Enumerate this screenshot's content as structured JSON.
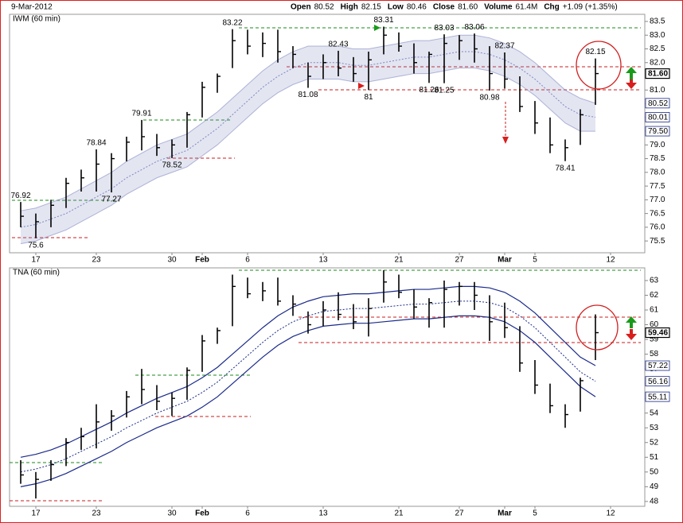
{
  "date": "9-Mar-2012",
  "quote": [
    {
      "label": "Open",
      "value": "80.52"
    },
    {
      "label": "High",
      "value": "82.15"
    },
    {
      "label": "Low",
      "value": "80.46"
    },
    {
      "label": "Close",
      "value": "81.60"
    },
    {
      "label": "Volume",
      "value": "61.4M"
    },
    {
      "label": "Chg",
      "value": "+1.09 (+1.35%)"
    }
  ],
  "chart_data": [
    {
      "type": "hlc",
      "title": "IWM (60 min)",
      "categories": [
        null,
        "17",
        null,
        null,
        null,
        "23",
        null,
        null,
        null,
        null,
        "30",
        null,
        "Feb",
        null,
        null,
        "6",
        null,
        null,
        null,
        null,
        "13",
        null,
        null,
        null,
        null,
        "21",
        null,
        null,
        null,
        "27",
        null,
        null,
        "Mar",
        null,
        "5",
        null,
        null,
        null,
        null,
        "12"
      ],
      "high": [
        76.92,
        76.5,
        77.0,
        77.8,
        78.1,
        78.84,
        78.7,
        79.3,
        79.91,
        79.4,
        79.2,
        80.2,
        81.3,
        81.6,
        83.22,
        83.2,
        83.1,
        83.2,
        82.6,
        82.0,
        82.3,
        82.43,
        82.2,
        82.4,
        83.31,
        83.1,
        82.7,
        82.4,
        83.03,
        83.0,
        83.06,
        82.6,
        82.37,
        81.5,
        80.6,
        80.0,
        79.2,
        80.3,
        82.15,
        null
      ],
      "low": [
        76.0,
        75.6,
        76.0,
        76.7,
        77.3,
        77.3,
        77.27,
        78.4,
        78.8,
        78.6,
        78.52,
        78.9,
        80.0,
        80.9,
        81.8,
        82.3,
        82.2,
        82.0,
        81.8,
        81.08,
        81.4,
        81.5,
        81.3,
        81.0,
        82.3,
        82.4,
        81.6,
        81.26,
        81.25,
        82.1,
        82.0,
        80.98,
        81.05,
        80.2,
        79.4,
        78.7,
        78.41,
        79.0,
        80.46,
        null
      ],
      "close": [
        76.4,
        76.2,
        76.8,
        77.6,
        77.8,
        78.3,
        78.5,
        79.1,
        79.3,
        78.9,
        79.0,
        80.1,
        81.1,
        81.5,
        82.8,
        82.6,
        82.7,
        82.4,
        82.3,
        81.5,
        82.0,
        81.8,
        81.6,
        82.1,
        83.0,
        82.6,
        82.0,
        82.3,
        82.7,
        82.8,
        82.5,
        81.6,
        81.4,
        80.4,
        79.8,
        79.0,
        78.9,
        80.1,
        81.6,
        null
      ],
      "band": {
        "upper": [
          76.6,
          76.7,
          76.9,
          77.1,
          77.4,
          77.7,
          78.0,
          78.4,
          78.7,
          79.0,
          79.2,
          79.4,
          79.8,
          80.2,
          80.7,
          81.2,
          81.7,
          82.1,
          82.4,
          82.6,
          82.6,
          82.6,
          82.5,
          82.5,
          82.6,
          82.7,
          82.8,
          82.8,
          82.9,
          83.0,
          83.0,
          82.9,
          82.7,
          82.4,
          82.0,
          81.5,
          81.0,
          80.7,
          80.52,
          null
        ],
        "middle": [
          76.0,
          76.1,
          76.3,
          76.5,
          76.8,
          77.1,
          77.4,
          77.8,
          78.1,
          78.4,
          78.6,
          78.8,
          79.2,
          79.6,
          80.1,
          80.6,
          81.1,
          81.5,
          81.8,
          82.0,
          82.0,
          82.0,
          81.9,
          81.9,
          82.0,
          82.1,
          82.2,
          82.2,
          82.3,
          82.4,
          82.4,
          82.3,
          82.1,
          81.8,
          81.4,
          80.9,
          80.4,
          80.1,
          80.01,
          null
        ],
        "lower": [
          75.4,
          75.5,
          75.7,
          75.9,
          76.2,
          76.5,
          76.8,
          77.2,
          77.5,
          77.8,
          78.0,
          78.2,
          78.6,
          79.0,
          79.5,
          80.0,
          80.5,
          80.9,
          81.2,
          81.4,
          81.4,
          81.4,
          81.3,
          81.3,
          81.4,
          81.5,
          81.6,
          81.6,
          81.7,
          81.8,
          81.8,
          81.7,
          81.5,
          81.2,
          80.8,
          80.3,
          79.8,
          79.5,
          79.5,
          null
        ]
      },
      "band_style": "fill",
      "band_color": "#8088c0",
      "annotations": [
        76.92,
        78.84,
        79.91,
        83.22,
        82.43,
        83.31,
        83.03,
        83.06,
        82.37,
        82.15,
        75.6,
        77.27,
        78.52,
        81.08,
        81.0,
        81.26,
        81.25,
        80.98,
        78.41
      ],
      "price_labels": [
        {
          "value": 81.6,
          "label": "81.60"
        },
        80.52,
        80.01,
        {
          "value": 79.5,
          "label": "79.50"
        }
      ],
      "ylim": [
        75.07,
        83.76
      ],
      "yticks": [
        75.5,
        {
          "value": 76,
          "label": "76.0"
        },
        76.5,
        {
          "value": 77,
          "label": "77.0"
        },
        77.5,
        {
          "value": 78,
          "label": "78.0"
        },
        78.5,
        {
          "value": 79,
          "label": "79.0"
        },
        79.5,
        {
          "value": 80,
          "label": "80.0"
        },
        80.5,
        {
          "value": 81,
          "label": "81.0"
        },
        81.5,
        {
          "value": 82,
          "label": "82.0"
        },
        82.5,
        {
          "value": 83,
          "label": "83.0"
        },
        83.5
      ]
    },
    {
      "type": "hlc",
      "title": "TNA (60 min)",
      "categories": [
        null,
        "17",
        null,
        null,
        null,
        "23",
        null,
        null,
        null,
        null,
        "30",
        null,
        "Feb",
        null,
        null,
        "6",
        null,
        null,
        null,
        null,
        "13",
        null,
        null,
        null,
        null,
        "21",
        null,
        null,
        null,
        "27",
        null,
        null,
        "Mar",
        null,
        "5",
        null,
        null,
        null,
        null,
        "12"
      ],
      "high": [
        50.8,
        50.0,
        50.8,
        52.3,
        53.0,
        54.6,
        54.2,
        55.5,
        57.0,
        55.9,
        55.4,
        57.1,
        59.3,
        59.8,
        63.4,
        63.2,
        62.9,
        63.2,
        62.0,
        60.9,
        61.6,
        62.2,
        61.4,
        61.8,
        63.7,
        63.4,
        62.4,
        61.8,
        63.0,
        62.9,
        62.9,
        62.0,
        61.5,
        59.9,
        57.6,
        56.0,
        54.6,
        56.4,
        60.7,
        null
      ],
      "low": [
        49.2,
        48.2,
        49.4,
        50.4,
        51.5,
        51.6,
        52.8,
        53.7,
        54.6,
        54.2,
        53.8,
        54.9,
        56.8,
        58.7,
        59.9,
        61.8,
        61.6,
        61.3,
        60.6,
        59.4,
        59.9,
        60.3,
        59.7,
        59.2,
        61.5,
        61.8,
        60.4,
        59.8,
        59.8,
        61.3,
        61.0,
        58.9,
        59.1,
        56.8,
        55.3,
        54.0,
        53.0,
        54.1,
        57.6,
        null
      ],
      "close": [
        49.8,
        49.5,
        50.5,
        52.0,
        52.4,
        53.4,
        53.8,
        55.1,
        55.6,
        54.8,
        55.0,
        56.9,
        58.9,
        59.6,
        62.6,
        62.1,
        62.3,
        61.6,
        61.4,
        60.0,
        61.0,
        60.7,
        60.2,
        61.1,
        62.9,
        62.2,
        61.2,
        61.5,
        62.4,
        62.6,
        62.0,
        60.2,
        59.8,
        57.4,
        55.9,
        54.5,
        53.9,
        56.2,
        59.46,
        null
      ],
      "band": {
        "upper": [
          51.0,
          51.2,
          51.5,
          51.9,
          52.4,
          52.9,
          53.4,
          54.0,
          54.5,
          55.0,
          55.4,
          55.8,
          56.4,
          57.1,
          58.0,
          58.9,
          59.8,
          60.6,
          61.2,
          61.6,
          61.9,
          62.0,
          62.1,
          62.1,
          62.2,
          62.3,
          62.4,
          62.4,
          62.5,
          62.6,
          62.6,
          62.5,
          62.2,
          61.6,
          60.8,
          59.8,
          58.8,
          57.8,
          57.22,
          null
        ],
        "middle": [
          50.0,
          50.2,
          50.5,
          50.9,
          51.4,
          51.9,
          52.4,
          53.0,
          53.5,
          54.0,
          54.4,
          54.8,
          55.4,
          56.1,
          57.0,
          57.9,
          58.8,
          59.6,
          60.2,
          60.6,
          60.9,
          61.0,
          61.1,
          61.1,
          61.2,
          61.3,
          61.4,
          61.4,
          61.5,
          61.6,
          61.6,
          61.5,
          61.2,
          60.6,
          59.8,
          58.8,
          57.8,
          56.8,
          56.16,
          null
        ],
        "lower": [
          49.0,
          49.2,
          49.5,
          49.9,
          50.4,
          50.9,
          51.4,
          52.0,
          52.5,
          53.0,
          53.4,
          53.8,
          54.4,
          55.1,
          56.0,
          56.9,
          57.8,
          58.6,
          59.2,
          59.6,
          59.9,
          60.0,
          60.1,
          60.1,
          60.2,
          60.3,
          60.4,
          60.4,
          60.5,
          60.6,
          60.6,
          60.5,
          60.2,
          59.6,
          58.8,
          57.8,
          56.8,
          55.8,
          55.11,
          null
        ]
      },
      "band_style": "lines",
      "band_color": "#1a2a8a",
      "annotations": [],
      "price_labels": [
        59.46,
        57.22,
        56.16,
        55.11
      ],
      "ylim": [
        47.67,
        63.86
      ],
      "yticks": [
        48,
        49,
        50,
        51,
        52,
        53,
        54,
        55,
        56,
        57,
        58,
        59,
        60,
        61,
        62,
        63
      ]
    }
  ]
}
